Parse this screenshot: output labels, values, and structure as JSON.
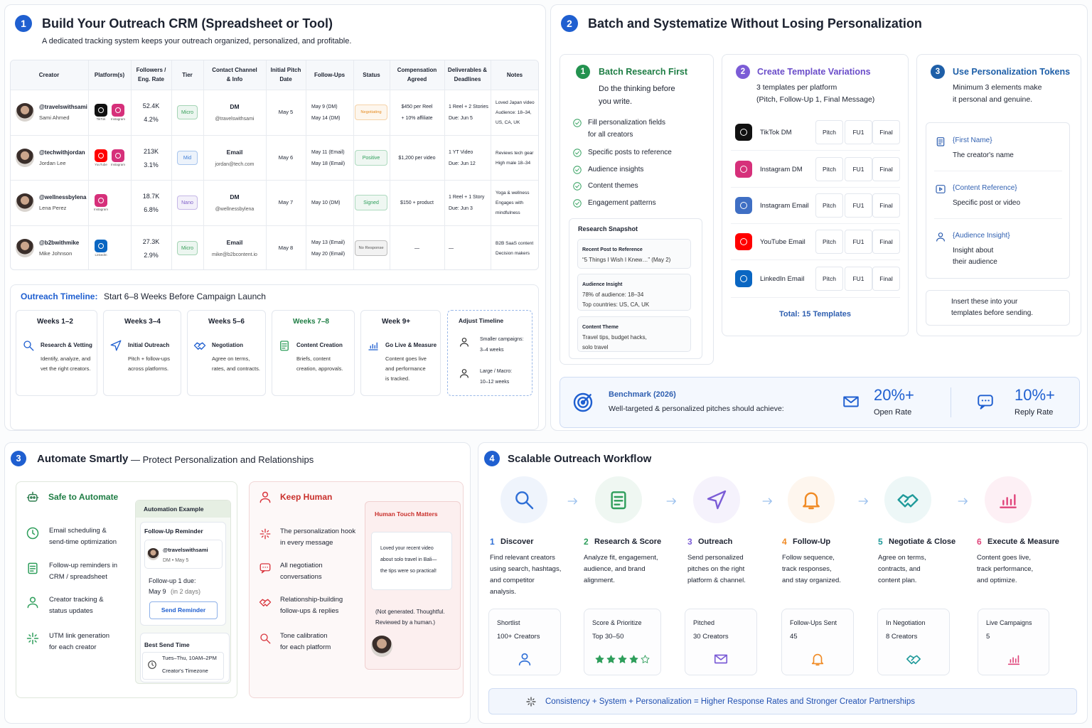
{
  "s1": {
    "num": "1",
    "title": "Build Your Outreach CRM (Spreadsheet or Tool)",
    "subtitle": "A dedicated tracking system keeps your outreach organized, personalized, and profitable.",
    "table": {
      "headers": [
        [
          "Creator"
        ],
        [
          "Platform(s)"
        ],
        [
          "Followers /",
          "Eng. Rate"
        ],
        [
          "Tier"
        ],
        [
          "Contact Channel",
          "& Info"
        ],
        [
          "Initial Pitch",
          "Date"
        ],
        [
          "Follow-Ups"
        ],
        [
          "Status"
        ],
        [
          "Compensation",
          "Agreed"
        ],
        [
          "Deliverables &",
          "Deadlines"
        ],
        [
          "Notes"
        ]
      ],
      "rows": [
        {
          "handle": "@travelswithsami",
          "name": "Sami Ahmed",
          "platforms": [
            {
              "label": "TikTok",
              "color": "#111111"
            },
            {
              "label": "Instagram",
              "color": "#d6307a"
            }
          ],
          "followers": "52.4K",
          "eng_rate": "4.2%",
          "tier": "Micro",
          "tier_color": "#3aa05c",
          "channel": "DM",
          "contact": "@travelswithsami",
          "pitch_date": "May 5",
          "follow_ups": [
            "May 9 (DM)",
            "May 14 (DM)"
          ],
          "status": "Negotiating",
          "status_color": "#e58a1f",
          "compensation": [
            "$450 per Reel",
            "+ 10% affiliate"
          ],
          "deliverables": [
            "1 Reel + 2 Stories",
            "Due: Jun 5"
          ],
          "notes": [
            "Loved Japan video",
            "Audience: 18–34,",
            "US, CA, UK"
          ]
        },
        {
          "handle": "@techwithjordan",
          "name": "Jordan Lee",
          "platforms": [
            {
              "label": "YouTube",
              "color": "#ff0000"
            },
            {
              "label": "Instagram",
              "color": "#d6307a"
            }
          ],
          "followers": "213K",
          "eng_rate": "3.1%",
          "tier": "Mid",
          "tier_color": "#3f7fd8",
          "channel": "Email",
          "contact": "jordan@tech.com",
          "pitch_date": "May 6",
          "follow_ups": [
            "May 11 (Email)",
            "May 18 (Email)"
          ],
          "status": "Positive",
          "status_color": "#2e9e5b",
          "compensation": [
            "$1,200 per video"
          ],
          "deliverables": [
            "1 YT Video",
            "Due: Jun 12"
          ],
          "notes": [
            "Reviews tech gear",
            "High male 18–34"
          ]
        },
        {
          "handle": "@wellnessbylena",
          "name": "Lena Perez",
          "platforms": [
            {
              "label": "Instagram",
              "color": "#d6307a"
            }
          ],
          "followers": "18.7K",
          "eng_rate": "6.8%",
          "tier": "Nano",
          "tier_color": "#8061c9",
          "channel": "DM",
          "contact": "@wellnessbylena",
          "pitch_date": "May 7",
          "follow_ups": [
            "May 10 (DM)"
          ],
          "status": "Signed",
          "status_color": "#2e9e5b",
          "compensation": [
            "$150 + product"
          ],
          "deliverables": [
            "1 Reel + 1 Story",
            "Due: Jun 3"
          ],
          "notes": [
            "Yoga & wellness",
            "Engages with",
            "mindfulness"
          ]
        },
        {
          "handle": "@b2bwithmike",
          "name": "Mike Johnson",
          "platforms": [
            {
              "label": "LinkedIn",
              "color": "#0a66c2"
            }
          ],
          "followers": "27.3K",
          "eng_rate": "2.9%",
          "tier": "Micro",
          "tier_color": "#3aa05c",
          "channel": "Email",
          "contact": "mike@b2bcontent.io",
          "pitch_date": "May 8",
          "follow_ups": [
            "May 13 (Email)",
            "May 20 (Email)"
          ],
          "status": "No Response",
          "status_color": "#555555",
          "compensation": [
            "—"
          ],
          "deliverables": [
            "—"
          ],
          "notes": [
            "B2B SaaS content",
            "Decision makers"
          ]
        }
      ]
    },
    "timeline": {
      "label": "Outreach Timeline:",
      "text": "Start 6–8 Weeks Before Campaign Launch",
      "steps": [
        {
          "weeks": "Weeks 1–2",
          "title": "Research & Vetting",
          "desc": [
            "Identify, analyze, and",
            "vet the right creators."
          ]
        },
        {
          "weeks": "Weeks 3–4",
          "title": "Initial Outreach",
          "desc": [
            "Pitch + follow-ups",
            "across platforms."
          ]
        },
        {
          "weeks": "Weeks 5–6",
          "title": "Negotiation",
          "desc": [
            "Agree on terms,",
            "rates, and contracts."
          ]
        },
        {
          "weeks": "Weeks 7–8",
          "title": "Content Creation",
          "desc": [
            "Briefs, content",
            "creation, approvals."
          ]
        },
        {
          "weeks": "Week 9+",
          "title": "Go Live & Measure",
          "desc": [
            "Content goes live",
            "and performance",
            "is tracked."
          ]
        }
      ],
      "adjust": {
        "title": "Adjust Timeline",
        "items": [
          {
            "label": "Smaller campaigns:",
            "value": "3–4 weeks"
          },
          {
            "label": "Large / Macro:",
            "value": "10–12 weeks"
          }
        ]
      }
    }
  },
  "s2": {
    "num": "2",
    "title": "Batch and Systematize Without Losing Personalization",
    "batch": {
      "num": "1",
      "title": "Batch Research First",
      "subtitle": [
        "Do the thinking before",
        "you write."
      ],
      "checklist": [
        [
          "Fill personalization fields",
          "for all creators"
        ],
        [
          "Specific posts to reference"
        ],
        [
          "Audience insights"
        ],
        [
          "Content themes"
        ],
        [
          "Engagement patterns"
        ]
      ],
      "snapshot": {
        "title": "Research Snapshot",
        "items": [
          {
            "label": "Recent Post to Reference",
            "lines": [
              "“5 Things I Wish I Knew…” (May 2)"
            ]
          },
          {
            "label": "Audience Insight",
            "lines": [
              "78% of audience: 18–34",
              "Top countries: US, CA, UK"
            ]
          },
          {
            "label": "Content Theme",
            "lines": [
              "Travel tips, budget hacks,",
              "solo travel"
            ]
          }
        ]
      }
    },
    "templates": {
      "num": "2",
      "title": "Create Template Variations",
      "subtitle": [
        "3 templates per platform",
        "(Pitch, Follow-Up 1, Final Message)"
      ],
      "platforms": [
        {
          "name": "TikTok DM",
          "color": "#111111"
        },
        {
          "name": "Instagram DM",
          "color": "#d6307a"
        },
        {
          "name": "Instagram Email",
          "color": "#3f6fc4"
        },
        {
          "name": "YouTube Email",
          "color": "#ff0000"
        },
        {
          "name": "LinkedIn Email",
          "color": "#0a66c2"
        }
      ],
      "variants": [
        "Pitch",
        "FU1",
        "Final"
      ],
      "total": "Total: 15 Templates"
    },
    "tokens": {
      "num": "3",
      "title": "Use Personalization Tokens",
      "subtitle": [
        "Minimum 3 elements make",
        "it personal and genuine."
      ],
      "items": [
        {
          "token": "{First Name}",
          "desc": [
            "The creator's name"
          ]
        },
        {
          "token": "{Content Reference}",
          "desc": [
            "Specific post or video"
          ]
        },
        {
          "token": "{Audience Insight}",
          "desc": [
            "Insight about",
            "their audience"
          ]
        }
      ],
      "note": [
        "Insert these into your",
        "templates before sending."
      ]
    },
    "benchmark": {
      "title": "Benchmark (2026)",
      "text": "Well-targeted & personalized pitches should achieve:",
      "stats": [
        {
          "value": "20%+",
          "label": "Open Rate"
        },
        {
          "value": "10%+",
          "label": "Reply Rate"
        }
      ]
    }
  },
  "s3": {
    "num": "3",
    "title": "Automate Smartly",
    "subtitle": "— Protect Personalization and Relationships",
    "safe": {
      "title": "Safe to Automate",
      "items": [
        [
          "Email scheduling &",
          "send-time optimization"
        ],
        [
          "Follow-up reminders in",
          "CRM / spreadsheet"
        ],
        [
          "Creator tracking &",
          "status updates"
        ],
        [
          "UTM link generation",
          "for each creator"
        ]
      ]
    },
    "example": {
      "title": "Automation Example",
      "card_title": "Follow-Up Reminder",
      "handle": "@travelswithsami",
      "meta": "DM • May 5",
      "due_label": "Follow-up 1 due:",
      "due_date": "May 9",
      "due_note": "(in 2 days)",
      "button": "Send Reminder",
      "send_title": "Best Send Time",
      "send_window": "Tues–Thu, 10AM–2PM",
      "send_zone": "Creator's Timezone"
    },
    "human": {
      "title": "Keep Human",
      "items": [
        [
          "The personalization hook",
          "in every message"
        ],
        [
          "All negotiation",
          "conversations"
        ],
        [
          "Relationship-building",
          "follow-ups & replies"
        ],
        [
          "Tone calibration",
          "for each platform"
        ]
      ],
      "card": {
        "title": "Human Touch Matters",
        "quote": [
          "Loved your recent video",
          "about solo travel in Bali—",
          "the tips were so practical!"
        ],
        "note": [
          "(Not generated. Thoughtful.",
          "Reviewed by a human.)"
        ]
      }
    }
  },
  "s4": {
    "num": "4",
    "title": "Scalable Outreach Workflow",
    "steps": [
      {
        "num": "1",
        "title": "Discover",
        "color": "#2f6fd6",
        "desc": [
          "Find relevant creators",
          "using search, hashtags,",
          "and competitor",
          "analysis."
        ],
        "stat_label": "Shortlist",
        "stat_value": "100+ Creators"
      },
      {
        "num": "2",
        "title": "Research & Score",
        "color": "#2e9e5b",
        "desc": [
          "Analyze fit, engagement,",
          "audience, and brand",
          "alignment."
        ],
        "stat_label": "Score & Prioritize",
        "stat_value": "Top 30–50"
      },
      {
        "num": "3",
        "title": "Outreach",
        "color": "#7b5cd6",
        "desc": [
          "Send personalized",
          "pitches on the right",
          "platform & channel."
        ],
        "stat_label": "Pitched",
        "stat_value": "30 Creators"
      },
      {
        "num": "4",
        "title": "Follow-Up",
        "color": "#f08a24",
        "desc": [
          "Follow sequence,",
          "track responses,",
          "and stay organized."
        ],
        "stat_label": "Follow-Ups Sent",
        "stat_value": "45"
      },
      {
        "num": "5",
        "title": "Negotiate & Close",
        "color": "#1f9a9a",
        "desc": [
          "Agree on terms,",
          "contracts, and",
          "content plan."
        ],
        "stat_label": "In Negotiation",
        "stat_value": "8 Creators"
      },
      {
        "num": "6",
        "title": "Execute & Measure",
        "color": "#e0457b",
        "desc": [
          "Content goes live,",
          "track performance,",
          "and optimize."
        ],
        "stat_label": "Live Campaigns",
        "stat_value": "5"
      }
    ],
    "footer": "Consistency + System + Personalization = Higher Response Rates and Stronger Creator Partnerships"
  }
}
